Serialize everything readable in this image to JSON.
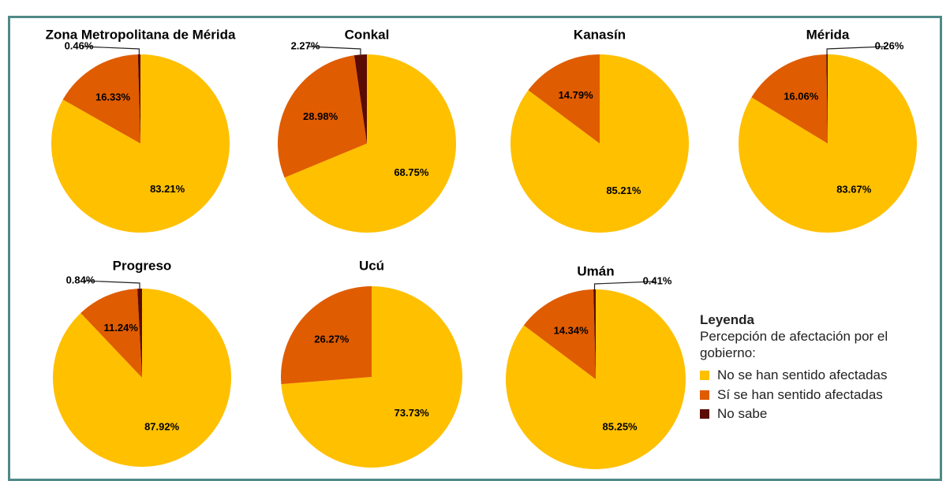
{
  "chart_data": [
    {
      "type": "pie",
      "title": "Zona Metropolitana de Mérida",
      "values": [
        83.21,
        16.33,
        0.46
      ],
      "value_labels": [
        "83.21%",
        "16.33%",
        "0.46%"
      ]
    },
    {
      "type": "pie",
      "title": "Conkal",
      "values": [
        68.75,
        28.98,
        2.27
      ],
      "value_labels": [
        "68.75%",
        "28.98%",
        "2.27%"
      ]
    },
    {
      "type": "pie",
      "title": "Kanasín",
      "values": [
        85.21,
        14.79
      ],
      "value_labels": [
        "85.21%",
        "14.79%"
      ]
    },
    {
      "type": "pie",
      "title": "Mérida",
      "values": [
        83.67,
        16.06,
        0.26
      ],
      "value_labels": [
        "83.67%",
        "16.06%",
        "0.26%"
      ]
    },
    {
      "type": "pie",
      "title": "Progreso",
      "values": [
        87.92,
        11.24,
        0.84
      ],
      "value_labels": [
        "87.92%",
        "11.24%",
        "0.84%"
      ]
    },
    {
      "type": "pie",
      "title": "Ucú",
      "values": [
        73.73,
        26.27
      ],
      "value_labels": [
        "73.73%",
        "26.27%"
      ]
    },
    {
      "type": "pie",
      "title": "Umán",
      "values": [
        85.25,
        14.34,
        0.41
      ],
      "value_labels": [
        "85.25%",
        "14.34%",
        "0.41%"
      ]
    }
  ],
  "legend": {
    "title": "Leyenda",
    "subtitle": "Percepción de afectación por el gobierno:",
    "items": [
      {
        "name": "No se han sentido afectadas",
        "color": "#FFC000"
      },
      {
        "name": "Sí se han sentido afectadas",
        "color": "#E05C00"
      },
      {
        "name": "No sabe",
        "color": "#5A0C04"
      }
    ]
  }
}
